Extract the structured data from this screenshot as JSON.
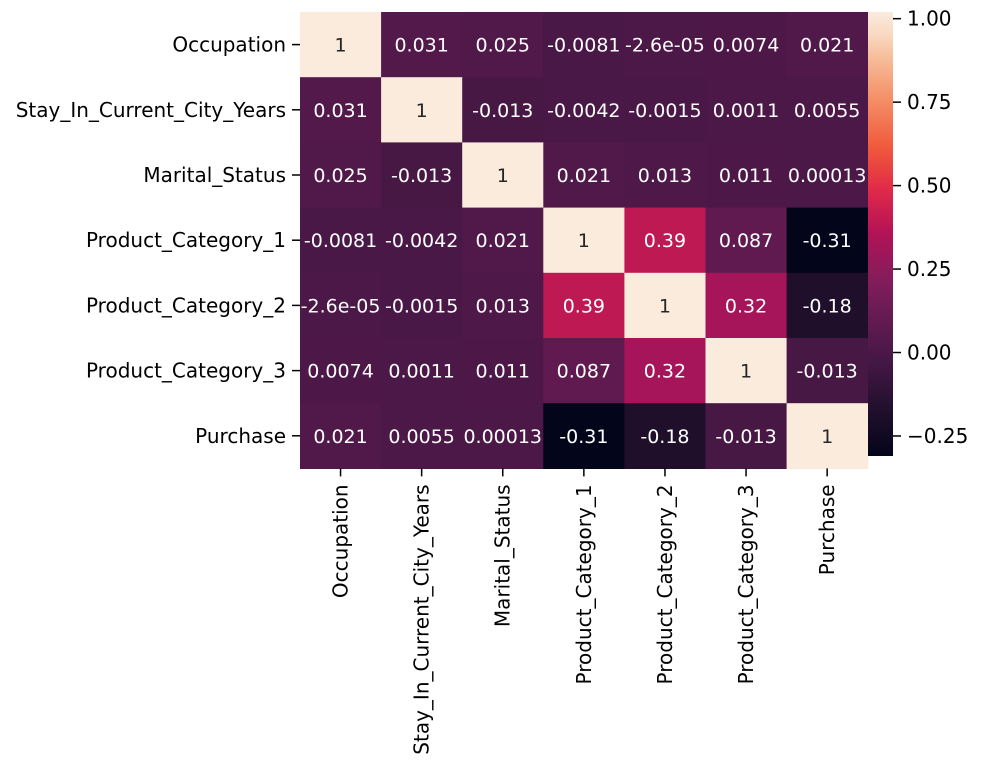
{
  "chart_data": {
    "type": "heatmap",
    "title": "",
    "xlabel": "",
    "ylabel": "",
    "row_labels": [
      "Occupation",
      "Stay_In_Current_City_Years",
      "Marital_Status",
      "Product_Category_1",
      "Product_Category_2",
      "Product_Category_3",
      "Purchase"
    ],
    "col_labels": [
      "Occupation",
      "Stay_In_Current_City_Years",
      "Marital_Status",
      "Product_Category_1",
      "Product_Category_2",
      "Product_Category_3",
      "Purchase"
    ],
    "values": [
      [
        1,
        0.031,
        0.025,
        -0.0081,
        -2.6e-05,
        0.0074,
        0.021
      ],
      [
        0.031,
        1,
        -0.013,
        -0.0042,
        -0.0015,
        0.0011,
        0.0055
      ],
      [
        0.025,
        -0.013,
        1,
        0.021,
        0.013,
        0.011,
        0.00013
      ],
      [
        -0.0081,
        -0.0042,
        0.021,
        1,
        0.39,
        0.087,
        -0.31
      ],
      [
        -2.6e-05,
        -0.0015,
        0.013,
        0.39,
        1,
        0.32,
        -0.18
      ],
      [
        0.0074,
        0.0011,
        0.011,
        0.087,
        0.32,
        1,
        -0.013
      ],
      [
        0.021,
        0.0055,
        0.00013,
        -0.31,
        -0.18,
        -0.013,
        1
      ]
    ],
    "annotations": [
      [
        "1",
        "0.031",
        "0.025",
        "-0.0081",
        "-2.6e-05",
        "0.0074",
        "0.021"
      ],
      [
        "0.031",
        "1",
        "-0.013",
        "-0.0042",
        "-0.0015",
        "0.0011",
        "0.0055"
      ],
      [
        "0.025",
        "-0.013",
        "1",
        "0.021",
        "0.013",
        "0.011",
        "0.00013"
      ],
      [
        "-0.0081",
        "-0.0042",
        "0.021",
        "1",
        "0.39",
        "0.087",
        "-0.31"
      ],
      [
        "-2.6e-05",
        "-0.0015",
        "0.013",
        "0.39",
        "1",
        "0.32",
        "-0.18"
      ],
      [
        "0.0074",
        "0.0011",
        "0.011",
        "0.087",
        "0.32",
        "1",
        "-0.013"
      ],
      [
        "0.021",
        "0.0055",
        "0.00013",
        "-0.31",
        "-0.18",
        "-0.013",
        "1"
      ]
    ],
    "colormap": "rocket",
    "vmin": -0.31,
    "vmax": 1.0,
    "colorbar": {
      "ticks": [
        1.0,
        0.75,
        0.5,
        0.25,
        0.0,
        -0.25
      ],
      "tick_labels": [
        "1.00",
        "0.75",
        "0.50",
        "0.25",
        "0.00",
        "−0.25"
      ]
    },
    "grid": false,
    "legend": "colorbar right"
  }
}
